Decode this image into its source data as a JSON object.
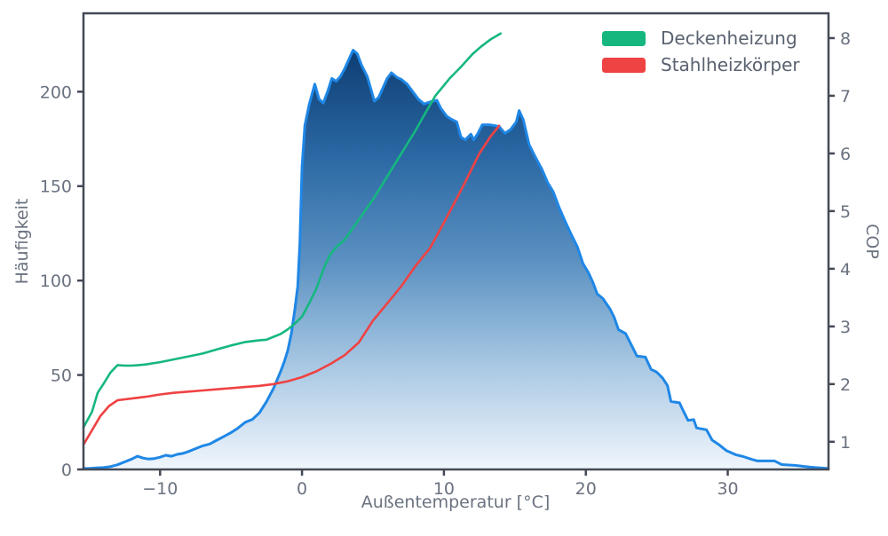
{
  "chart_data": {
    "type": "area",
    "title": "",
    "xlabel": "Außentemperatur [°C]",
    "ylabel_left": "Häufigkeit",
    "ylabel_right": "COP",
    "grid": false,
    "legend_position": "upper right",
    "x_range": [
      -15.4,
      37.1
    ],
    "y_left_range": [
      0,
      241.5
    ],
    "y_right_range": [
      0.52,
      8.43
    ],
    "x_ticks": [
      {
        "v": -10,
        "label": "−10"
      },
      {
        "v": 0,
        "label": "0"
      },
      {
        "v": 10,
        "label": "10"
      },
      {
        "v": 20,
        "label": "20"
      },
      {
        "v": 30,
        "label": "30"
      }
    ],
    "y_left_ticks": [
      {
        "v": 0,
        "label": "0"
      },
      {
        "v": 50,
        "label": "50"
      },
      {
        "v": 100,
        "label": "100"
      },
      {
        "v": 150,
        "label": "150"
      },
      {
        "v": 200,
        "label": "200"
      }
    ],
    "y_right_ticks": [
      {
        "v": 1,
        "label": "1"
      },
      {
        "v": 2,
        "label": "2"
      },
      {
        "v": 3,
        "label": "3"
      },
      {
        "v": 4,
        "label": "4"
      },
      {
        "v": 5,
        "label": "5"
      },
      {
        "v": 6,
        "label": "6"
      },
      {
        "v": 7,
        "label": "7"
      },
      {
        "v": 8,
        "label": "8"
      }
    ],
    "legend": [
      {
        "label": "Deckenheizung",
        "color": "#15b77f"
      },
      {
        "label": "Stahlheizkörper",
        "color": "#ef4243"
      }
    ],
    "area_series": {
      "label": null,
      "axis": "left",
      "points": [
        [
          -15.4,
          0.5
        ],
        [
          -15,
          0.5
        ],
        [
          -14.5,
          0.8
        ],
        [
          -14,
          1
        ],
        [
          -13.5,
          1.5
        ],
        [
          -13,
          2.5
        ],
        [
          -12.5,
          4
        ],
        [
          -12,
          5.5
        ],
        [
          -11.6,
          7
        ],
        [
          -11.2,
          6
        ],
        [
          -10.8,
          5.5
        ],
        [
          -10.4,
          5.8
        ],
        [
          -10,
          6.5
        ],
        [
          -9.6,
          7.5
        ],
        [
          -9.2,
          7
        ],
        [
          -8.8,
          8
        ],
        [
          -8.4,
          8.5
        ],
        [
          -8,
          9.5
        ],
        [
          -7.5,
          11
        ],
        [
          -7,
          12.5
        ],
        [
          -6.5,
          13.5
        ],
        [
          -6,
          15.5
        ],
        [
          -5.5,
          17.5
        ],
        [
          -5,
          19.5
        ],
        [
          -4.5,
          22
        ],
        [
          -4,
          25
        ],
        [
          -3.5,
          26.5
        ],
        [
          -3,
          30
        ],
        [
          -2.5,
          36
        ],
        [
          -2,
          43
        ],
        [
          -1.75,
          47.5
        ],
        [
          -1.5,
          52
        ],
        [
          -1.25,
          57
        ],
        [
          -1,
          63
        ],
        [
          -0.75,
          72
        ],
        [
          -0.5,
          85
        ],
        [
          -0.3,
          97
        ],
        [
          -0.15,
          120
        ],
        [
          0,
          160
        ],
        [
          0.2,
          182
        ],
        [
          0.5,
          193
        ],
        [
          0.9,
          204
        ],
        [
          1.2,
          196
        ],
        [
          1.5,
          194
        ],
        [
          1.8,
          200
        ],
        [
          2.1,
          207
        ],
        [
          2.4,
          205.5
        ],
        [
          2.7,
          208
        ],
        [
          3,
          212
        ],
        [
          3.3,
          217
        ],
        [
          3.6,
          222
        ],
        [
          3.9,
          220
        ],
        [
          4.2,
          214
        ],
        [
          4.6,
          208
        ],
        [
          5.1,
          195
        ],
        [
          5.4,
          197
        ],
        [
          5.7,
          202
        ],
        [
          6,
          207
        ],
        [
          6.3,
          210
        ],
        [
          6.7,
          207.5
        ],
        [
          7,
          206.5
        ],
        [
          7.4,
          204
        ],
        [
          7.8,
          200
        ],
        [
          8.2,
          196
        ],
        [
          8.6,
          193.5
        ],
        [
          9,
          194.5
        ],
        [
          9.5,
          195.5
        ],
        [
          9.8,
          191
        ],
        [
          10.2,
          187
        ],
        [
          10.5,
          185.5
        ],
        [
          10.9,
          184
        ],
        [
          11.2,
          176
        ],
        [
          11.5,
          174.5
        ],
        [
          11.9,
          177.5
        ],
        [
          12.1,
          174.5
        ],
        [
          12.4,
          178
        ],
        [
          12.7,
          182.5
        ],
        [
          13.2,
          182.5
        ],
        [
          13.6,
          182
        ],
        [
          13.9,
          181.5
        ],
        [
          14.3,
          178
        ],
        [
          14.7,
          180
        ],
        [
          15.1,
          184
        ],
        [
          15.3,
          190
        ],
        [
          15.6,
          185
        ],
        [
          16,
          172
        ],
        [
          16.4,
          166
        ],
        [
          16.9,
          159
        ],
        [
          17.3,
          152
        ],
        [
          17.7,
          147
        ],
        [
          18.1,
          139
        ],
        [
          18.5,
          132
        ],
        [
          19,
          124
        ],
        [
          19.4,
          118
        ],
        [
          19.8,
          109
        ],
        [
          20.2,
          104
        ],
        [
          20.5,
          99
        ],
        [
          20.8,
          93
        ],
        [
          21.2,
          90.5
        ],
        [
          21.7,
          85
        ],
        [
          22,
          80.5
        ],
        [
          22.3,
          74
        ],
        [
          22.8,
          72
        ],
        [
          23.2,
          66
        ],
        [
          23.6,
          60
        ],
        [
          24.2,
          59.5
        ],
        [
          24.6,
          53
        ],
        [
          25,
          51.5
        ],
        [
          25.4,
          48.5
        ],
        [
          25.75,
          44.5
        ],
        [
          26,
          36
        ],
        [
          26.6,
          35.3
        ],
        [
          26.9,
          30.5
        ],
        [
          27.2,
          26
        ],
        [
          27.6,
          26.4
        ],
        [
          27.8,
          22
        ],
        [
          28.5,
          21
        ],
        [
          28.9,
          15.5
        ],
        [
          29.4,
          13
        ],
        [
          29.9,
          10
        ],
        [
          30.6,
          7.7
        ],
        [
          31.1,
          6.8
        ],
        [
          31.7,
          5.3
        ],
        [
          32.1,
          4.5
        ],
        [
          33.3,
          4.5
        ],
        [
          33.8,
          2.6
        ],
        [
          34.8,
          2.1
        ],
        [
          35.8,
          1.2
        ],
        [
          36.5,
          0.8
        ],
        [
          37.05,
          0.5
        ]
      ]
    },
    "line_series": [
      {
        "label": "Deckenheizung",
        "axis": "right",
        "color": "#15b77f",
        "points": [
          [
            -15.4,
            1.25
          ],
          [
            -14.8,
            1.52
          ],
          [
            -14.4,
            1.85
          ],
          [
            -14,
            2.0
          ],
          [
            -13.5,
            2.2
          ],
          [
            -13,
            2.33
          ],
          [
            -12.5,
            2.32
          ],
          [
            -12,
            2.32
          ],
          [
            -11.5,
            2.33
          ],
          [
            -11,
            2.34
          ],
          [
            -10.5,
            2.36
          ],
          [
            -10,
            2.38
          ],
          [
            -9,
            2.43
          ],
          [
            -8,
            2.48
          ],
          [
            -7,
            2.53
          ],
          [
            -6,
            2.6
          ],
          [
            -5,
            2.67
          ],
          [
            -4,
            2.73
          ],
          [
            -3,
            2.76
          ],
          [
            -2.5,
            2.77
          ],
          [
            -2,
            2.82
          ],
          [
            -1.5,
            2.87
          ],
          [
            -1,
            2.95
          ],
          [
            -0.5,
            3.05
          ],
          [
            0,
            3.17
          ],
          [
            0.5,
            3.4
          ],
          [
            1,
            3.65
          ],
          [
            1.6,
            4.05
          ],
          [
            2,
            4.25
          ],
          [
            2.5,
            4.4
          ],
          [
            3,
            4.5
          ],
          [
            4,
            4.85
          ],
          [
            5,
            5.2
          ],
          [
            6,
            5.6
          ],
          [
            7,
            6.0
          ],
          [
            8,
            6.4
          ],
          [
            8.6,
            6.66
          ],
          [
            9.4,
            7.0
          ],
          [
            10.4,
            7.3
          ],
          [
            11.2,
            7.5
          ],
          [
            12,
            7.72
          ],
          [
            12.6,
            7.85
          ],
          [
            13.3,
            7.98
          ],
          [
            14,
            8.08
          ]
        ]
      },
      {
        "label": "Stahlheizkörper",
        "axis": "right",
        "color": "#ef4243",
        "points": [
          [
            -15.4,
            0.95
          ],
          [
            -14.8,
            1.2
          ],
          [
            -14.2,
            1.45
          ],
          [
            -13.6,
            1.62
          ],
          [
            -13,
            1.72
          ],
          [
            -12,
            1.75
          ],
          [
            -11,
            1.78
          ],
          [
            -10,
            1.82
          ],
          [
            -9,
            1.85
          ],
          [
            -8,
            1.87
          ],
          [
            -7,
            1.89
          ],
          [
            -6,
            1.91
          ],
          [
            -5,
            1.93
          ],
          [
            -4,
            1.95
          ],
          [
            -3,
            1.97
          ],
          [
            -2,
            2.0
          ],
          [
            -1,
            2.05
          ],
          [
            0,
            2.12
          ],
          [
            1,
            2.22
          ],
          [
            2,
            2.35
          ],
          [
            3,
            2.5
          ],
          [
            4,
            2.72
          ],
          [
            5,
            3.1
          ],
          [
            6,
            3.4
          ],
          [
            7,
            3.7
          ],
          [
            8,
            4.05
          ],
          [
            9,
            4.35
          ],
          [
            10,
            4.8
          ],
          [
            10.8,
            5.17
          ],
          [
            11.45,
            5.48
          ],
          [
            12.5,
            6.0
          ],
          [
            13.3,
            6.3
          ],
          [
            13.9,
            6.48
          ]
        ]
      }
    ],
    "colors": {
      "area_line": "#1f87e6",
      "area_gradient": [
        "#0d3d72",
        "#2a67a3",
        "#5a90c1",
        "#a7c7e3",
        "#f0f6fd"
      ],
      "spine": "#434a56",
      "tick_label": "#6a7280",
      "axis_label": "#6a7280",
      "legend_text": "#5a6270",
      "background": "#ffffff"
    }
  }
}
